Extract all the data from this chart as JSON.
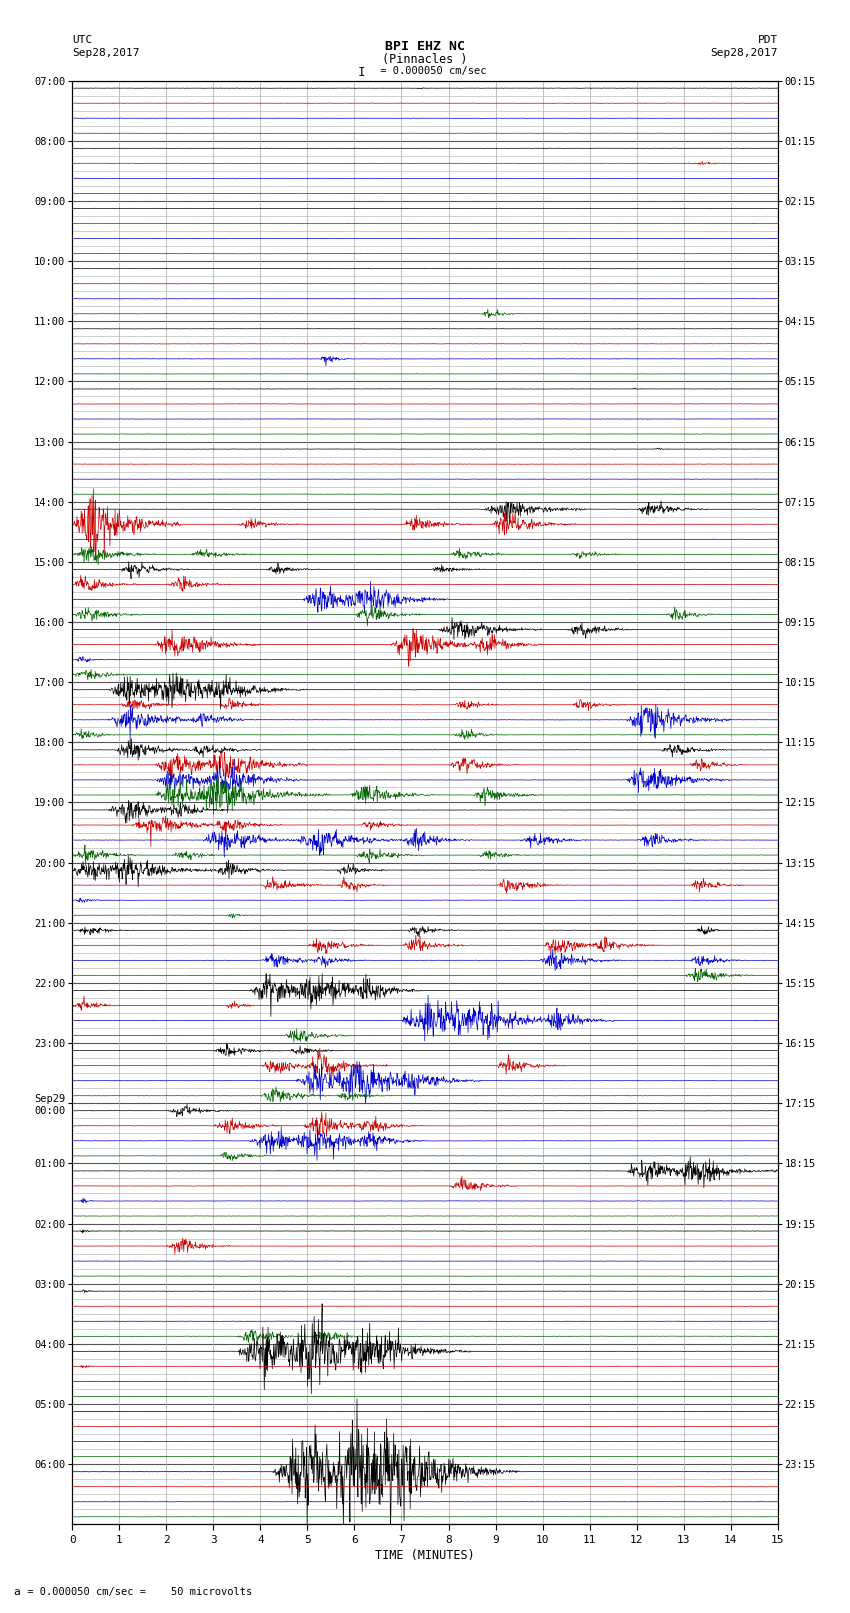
{
  "title_line1": "BPI EHZ NC",
  "title_line2": "(Pinnacles )",
  "scale_text": "I = 0.000050 cm/sec",
  "left_label_top": "UTC",
  "left_label_date": "Sep28,2017",
  "right_label_top": "PDT",
  "right_label_date": "Sep28,2017",
  "xlabel": "TIME (MINUTES)",
  "bottom_note": "= 0.000050 cm/sec =    50 microvolts",
  "xlim": [
    0,
    15
  ],
  "xticks": [
    0,
    1,
    2,
    3,
    4,
    5,
    6,
    7,
    8,
    9,
    10,
    11,
    12,
    13,
    14,
    15
  ],
  "fig_width": 8.5,
  "fig_height": 16.13,
  "dpi": 100,
  "trace_colors": [
    "#000000",
    "#cc0000",
    "#0000cc",
    "#006400"
  ],
  "background": "#ffffff",
  "grid_color": "#aaaaaa",
  "n_hours": 24,
  "traces_per_hour": 4,
  "row_labels_utc": [
    "07:00",
    "08:00",
    "09:00",
    "10:00",
    "11:00",
    "12:00",
    "13:00",
    "14:00",
    "15:00",
    "16:00",
    "17:00",
    "18:00",
    "19:00",
    "20:00",
    "21:00",
    "22:00",
    "23:00",
    "Sep29\n00:00",
    "01:00",
    "02:00",
    "03:00",
    "04:00",
    "05:00",
    "06:00"
  ],
  "row_labels_pdt": [
    "00:15",
    "01:15",
    "02:15",
    "03:15",
    "04:15",
    "05:15",
    "06:15",
    "07:15",
    "08:15",
    "09:15",
    "10:15",
    "11:15",
    "12:15",
    "13:15",
    "14:15",
    "15:15",
    "16:15",
    "17:15",
    "18:15",
    "19:15",
    "20:15",
    "21:15",
    "22:15",
    "23:15"
  ]
}
